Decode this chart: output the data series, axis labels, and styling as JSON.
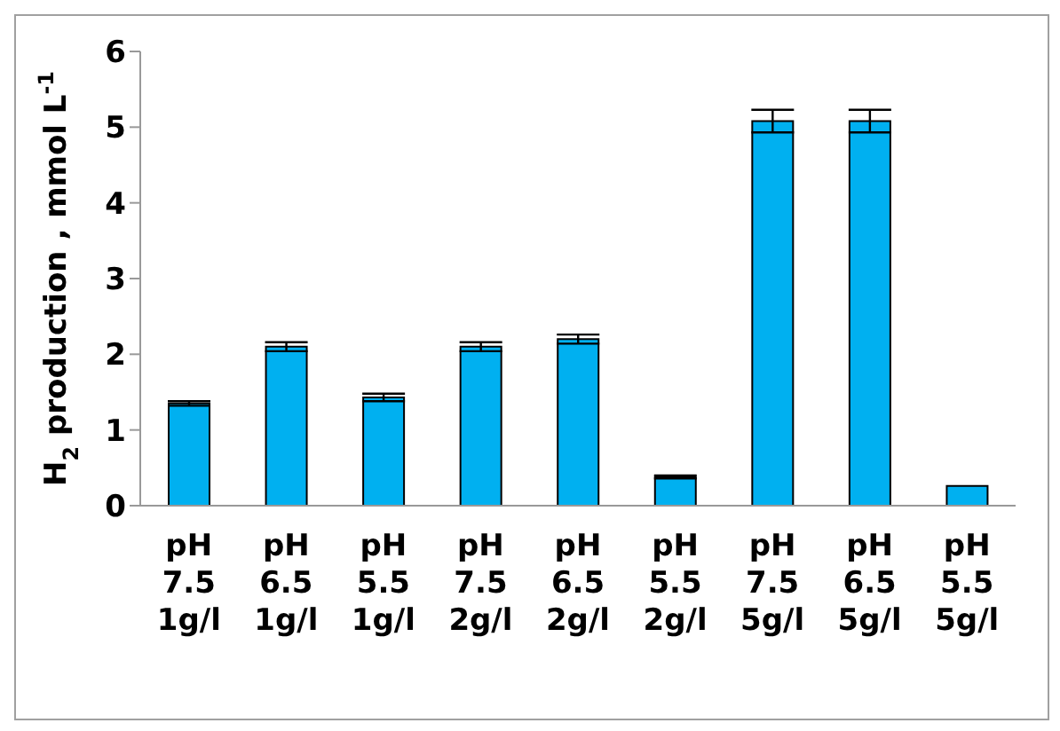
{
  "chart_data": {
    "type": "bar",
    "ylabel": "H$_{2}$ production , mmol L$^{-1}$",
    "categories": [
      "pH\n7.5\n1g/l",
      "pH\n6.5\n1g/l",
      "pH\n5.5\n1g/l",
      "pH\n7.5\n2g/l",
      "pH\n6.5\n2g/l",
      "pH\n5.5\n2g/l",
      "pH\n7.5\n5g/l",
      "pH\n6.5\n5g/l",
      "pH\n5.5\n5g/l"
    ],
    "values": [
      1.35,
      2.1,
      1.43,
      2.1,
      2.2,
      0.38,
      5.08,
      5.08,
      0.26
    ],
    "errors": [
      0.03,
      0.06,
      0.05,
      0.06,
      0.06,
      0.02,
      0.15,
      0.15,
      null
    ],
    "color": "#00b0f0",
    "ylim": [
      0,
      6
    ],
    "yticks": [
      0,
      1,
      2,
      3,
      4,
      5,
      6
    ],
    "grid": false,
    "legend": false
  }
}
